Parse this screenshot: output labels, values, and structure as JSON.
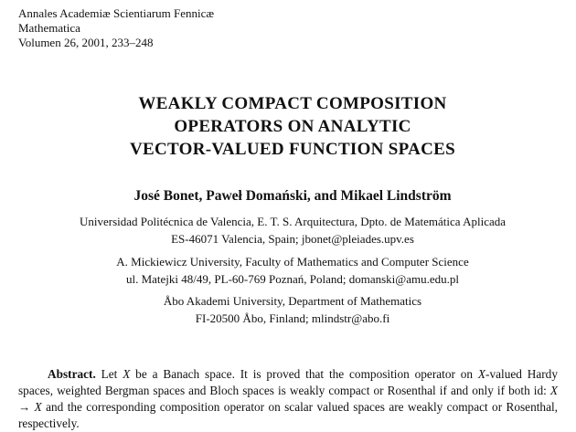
{
  "header": {
    "journal": "Annales Academiæ Scientiarum Fennicæ",
    "series": "Mathematica",
    "volume": "Volumen 26, 2001, 233–248"
  },
  "title": {
    "lines": [
      "WEAKLY COMPACT COMPOSITION",
      "OPERATORS ON ANALYTIC",
      "VECTOR-VALUED FUNCTION SPACES"
    ]
  },
  "authors": "José Bonet, Paweł Domański, and Mikael Lindström",
  "affiliations": [
    [
      "Universidad Politécnica de Valencia, E. T. S. Arquitectura, Dpto. de Matemática Aplicada",
      "ES-46071 Valencia, Spain; jbonet@pleiades.upv.es"
    ],
    [
      "A. Mickiewicz University, Faculty of Mathematics and Computer Science",
      "ul. Matejki 48/49, PL-60-769 Poznań, Poland; domanski@amu.edu.pl"
    ],
    [
      "Åbo Akademi University, Department of Mathematics",
      "FI-20500 Åbo, Finland; mlindstr@abo.fi"
    ]
  ],
  "abstract": {
    "label": "Abstract.",
    "p1": " Let ",
    "x": "X",
    "p2": " be a Banach space. It is proved that the composition operator on ",
    "p3": "-valued Hardy spaces, weighted Bergman spaces and Bloch spaces is weakly compact or Rosenthal if and only if both id: ",
    "arrow": " → ",
    "p4": " and the corresponding composition operator on scalar valued spaces are weakly compact or Rosenthal, respectively."
  }
}
